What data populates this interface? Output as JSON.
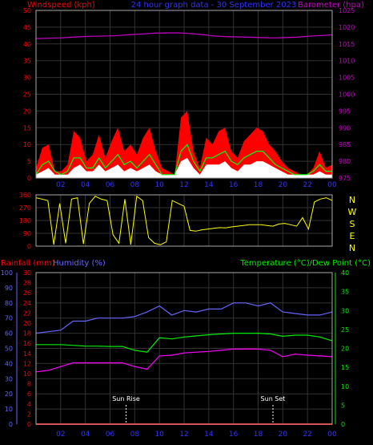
{
  "chart_data": [
    {
      "type": "line",
      "title": "24 hour graph data - 30 September 2023",
      "left_label": "Windspeed (kph)",
      "right_label": "Barometer (hpa)",
      "x_ticks": [
        "02",
        "04",
        "06",
        "08",
        "10",
        "12",
        "14",
        "16",
        "18",
        "20",
        "22",
        "00"
      ],
      "y_left": {
        "range": [
          0,
          50
        ],
        "ticks": [
          "0",
          "5",
          "10",
          "15",
          "20",
          "25",
          "30",
          "35",
          "40",
          "45",
          "50"
        ]
      },
      "y_right": {
        "range": [
          975,
          1025
        ],
        "ticks": [
          "975",
          "980",
          "985",
          "990",
          "995",
          "1000",
          "1005",
          "1010",
          "1015",
          "1020",
          "1025"
        ]
      },
      "series": [
        {
          "name": "Wind gust",
          "axis": "left",
          "color": "#ff0000",
          "values": [
            3,
            9,
            10,
            2,
            2,
            4,
            14,
            12,
            5,
            7,
            13,
            6,
            11,
            15,
            8,
            10,
            7,
            12,
            15,
            8,
            3,
            2,
            1,
            18,
            20,
            8,
            3,
            12,
            10,
            14,
            15,
            8,
            6,
            11,
            13,
            15,
            14,
            10,
            8,
            5,
            3,
            2,
            1,
            1,
            3,
            8,
            3,
            4
          ]
        },
        {
          "name": "Wind average",
          "axis": "left",
          "color": "#00ff00",
          "values": [
            1,
            4,
            5,
            2,
            1,
            2,
            6,
            6,
            3,
            3,
            6,
            3,
            5,
            7,
            4,
            5,
            3,
            5,
            7,
            4,
            1,
            1,
            1,
            8,
            10,
            5,
            2,
            6,
            6,
            7,
            8,
            5,
            4,
            6,
            7,
            8,
            8,
            6,
            4,
            3,
            2,
            1,
            1,
            1,
            2,
            4,
            2,
            2
          ]
        },
        {
          "name": "Wind",
          "axis": "left",
          "color": "#ffffff",
          "values": [
            1,
            2,
            3,
            1,
            1,
            1,
            3,
            4,
            2,
            2,
            4,
            2,
            3,
            4,
            2,
            3,
            2,
            3,
            4,
            2,
            1,
            1,
            1,
            5,
            6,
            3,
            1,
            4,
            4,
            4,
            5,
            3,
            2,
            4,
            4,
            5,
            5,
            4,
            3,
            2,
            1,
            1,
            1,
            1,
            1,
            2,
            1,
            1
          ]
        },
        {
          "name": "Barometer",
          "axis": "right",
          "color": "#cc00cc",
          "values": [
            1016.6,
            1016.7,
            1016.8,
            1017.0,
            1017.2,
            1017.3,
            1017.4,
            1017.5,
            1017.8,
            1018.0,
            1018.2,
            1018.3,
            1018.3,
            1018.1,
            1017.8,
            1017.4,
            1017.2,
            1017.1,
            1017.0,
            1016.9,
            1016.8,
            1016.9,
            1017.0,
            1017.3,
            1017.5,
            1017.7
          ]
        }
      ]
    },
    {
      "type": "line",
      "right_letters": [
        "N",
        "W",
        "S",
        "E",
        "N"
      ],
      "y_left": {
        "range": [
          0,
          360
        ],
        "ticks": [
          "0",
          "90",
          "180",
          "270",
          "360"
        ]
      },
      "x_ticks": [
        "02",
        "04",
        "06",
        "08",
        "10",
        "12",
        "14",
        "16",
        "18",
        "20",
        "22",
        "00"
      ],
      "series": [
        {
          "name": "Wind direction",
          "color": "#ffff00",
          "values": [
            340,
            330,
            320,
            10,
            300,
            20,
            330,
            340,
            15,
            300,
            350,
            330,
            320,
            80,
            20,
            330,
            10,
            350,
            320,
            60,
            20,
            10,
            30,
            320,
            300,
            280,
            110,
            105,
            115,
            120,
            125,
            130,
            128,
            135,
            140,
            145,
            150,
            150,
            150,
            145,
            140,
            155,
            160,
            150,
            140,
            200,
            120,
            310,
            330,
            340,
            320
          ]
        }
      ]
    },
    {
      "type": "line",
      "left_label_rain": "Rainfall (mm)",
      "left_label_humidity": "Humidity (%)",
      "right_label": "Temperature (°C)/Dew Point (°C)",
      "x_ticks": [
        "02",
        "04",
        "06",
        "08",
        "10",
        "12",
        "14",
        "16",
        "18",
        "20",
        "22",
        "00"
      ],
      "y_humidity": {
        "range": [
          0,
          100
        ],
        "ticks": [
          "0",
          "10",
          "20",
          "30",
          "40",
          "50",
          "60",
          "70",
          "80",
          "90",
          "100"
        ]
      },
      "y_rain": {
        "range": [
          0,
          30
        ],
        "ticks": [
          "0",
          "2",
          "4",
          "6",
          "8",
          "10",
          "12",
          "14",
          "16",
          "18",
          "20",
          "22",
          "24",
          "26",
          "28",
          "30"
        ]
      },
      "y_temp": {
        "range": [
          0,
          40
        ],
        "ticks": [
          "0",
          "5",
          "10",
          "15",
          "20",
          "25",
          "30",
          "35",
          "40"
        ]
      },
      "annotations": [
        {
          "label": "Sun Rise",
          "x": 7.3
        },
        {
          "label": "Sun Set",
          "x": 19.2
        }
      ],
      "series": [
        {
          "name": "Humidity",
          "axis": "humidity",
          "color": "#6666ff",
          "x": [
            0,
            1,
            2,
            3,
            4,
            5,
            6,
            7,
            8,
            9,
            10,
            11,
            12,
            13,
            14,
            15,
            16,
            17,
            18,
            19,
            20,
            21,
            22,
            23,
            24
          ],
          "values": [
            60,
            61,
            62,
            68,
            68,
            70,
            70,
            70,
            71,
            74,
            78,
            72,
            75,
            74,
            76,
            76,
            80,
            80,
            78,
            80,
            74,
            73,
            72,
            72,
            74
          ]
        },
        {
          "name": "Temperature",
          "axis": "temp",
          "color": "#00ee00",
          "x": [
            0,
            1,
            2,
            3,
            4,
            5,
            6,
            7,
            8,
            9,
            10,
            11,
            12,
            13,
            14,
            15,
            16,
            17,
            18,
            19,
            20,
            21,
            22,
            23,
            24
          ],
          "values": [
            21,
            21,
            21,
            20.8,
            20.6,
            20.6,
            20.5,
            20.5,
            19.5,
            19,
            22.8,
            22.5,
            23,
            23.3,
            23.6,
            23.8,
            24,
            24,
            24,
            23.8,
            23.2,
            23.5,
            23.5,
            23,
            22
          ]
        },
        {
          "name": "Dew Point",
          "axis": "temp",
          "color": "#ff00ff",
          "x": [
            0,
            1,
            2,
            3,
            4,
            5,
            6,
            7,
            8,
            9,
            10,
            11,
            12,
            13,
            14,
            15,
            16,
            17,
            18,
            19,
            20,
            21,
            22,
            23,
            24
          ],
          "values": [
            13.8,
            14.2,
            15.2,
            16.2,
            16.2,
            16.2,
            16.2,
            16.2,
            15.2,
            14.5,
            18,
            18.2,
            18.8,
            19,
            19.2,
            19.5,
            19.8,
            19.8,
            19.8,
            19.5,
            17.8,
            18.5,
            18.2,
            18,
            17.8
          ]
        },
        {
          "name": "Rainfall",
          "axis": "rain",
          "color": "#ff0000",
          "x": [
            0,
            24
          ],
          "values": [
            0,
            0
          ]
        }
      ]
    }
  ]
}
